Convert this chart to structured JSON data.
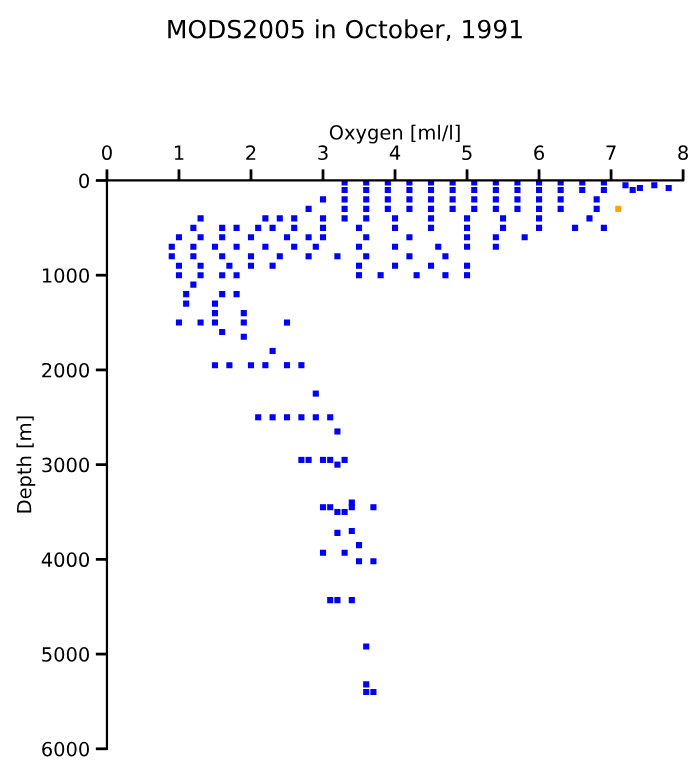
{
  "chart_data": {
    "type": "scatter",
    "title": "MODS2005 in October, 1991",
    "xlabel": "Oxygen [ml/l]",
    "ylabel": "Depth [m]",
    "xlim": [
      0,
      8
    ],
    "ylim": [
      6000,
      0
    ],
    "xticks": [
      0,
      1,
      2,
      3,
      4,
      5,
      6,
      7,
      8
    ],
    "yticks": [
      0,
      1000,
      2000,
      3000,
      4000,
      5000,
      6000
    ],
    "grid": false,
    "marker": "square",
    "series": [
      {
        "color": "#0000ff",
        "x": [
          3.3,
          3.6,
          3.9,
          4.2,
          4.5,
          4.8,
          5.1,
          5.4,
          5.7,
          6.0,
          6.3,
          6.6,
          6.9,
          3.3,
          3.6,
          3.9,
          4.2,
          4.5,
          4.8,
          5.1,
          5.4,
          5.7,
          6.0,
          6.3,
          6.6,
          6.9,
          7.2,
          7.4,
          7.6,
          7.8,
          7.3,
          3.0,
          3.3,
          3.6,
          3.9,
          4.2,
          4.5,
          4.8,
          5.1,
          5.4,
          5.7,
          6.0,
          6.3,
          6.8,
          2.8,
          3.3,
          3.6,
          3.9,
          4.2,
          4.5,
          4.8,
          5.1,
          5.4,
          5.7,
          6.0,
          6.3,
          6.8,
          1.3,
          2.2,
          2.4,
          2.6,
          3.0,
          3.3,
          3.6,
          4.0,
          4.5,
          5.0,
          5.5,
          6.0,
          6.7,
          1.2,
          1.6,
          1.8,
          2.1,
          2.3,
          2.6,
          3.0,
          3.5,
          4.0,
          4.5,
          5.0,
          5.5,
          6.0,
          6.5,
          6.9,
          1.0,
          1.3,
          1.6,
          2.0,
          2.5,
          2.8,
          3.0,
          3.6,
          4.2,
          5.0,
          5.4,
          5.8,
          0.9,
          1.2,
          1.5,
          1.8,
          2.2,
          2.6,
          2.9,
          3.5,
          4.0,
          4.6,
          5.0,
          5.4,
          0.9,
          1.2,
          1.6,
          2.0,
          2.4,
          2.8,
          3.2,
          3.6,
          4.2,
          4.7,
          1.0,
          1.3,
          1.7,
          2.0,
          2.3,
          3.5,
          4.0,
          4.5,
          5.0,
          1.0,
          1.3,
          1.6,
          1.8,
          3.5,
          3.8,
          4.3,
          4.7,
          5.0,
          1.2,
          1.1,
          1.6,
          1.8,
          1.1,
          1.5,
          1.5,
          1.9,
          1.0,
          1.3,
          1.5,
          1.9,
          2.5,
          1.6,
          1.9,
          2.3,
          1.5,
          1.7,
          2.0,
          2.2,
          2.5,
          2.7,
          2.9,
          2.1,
          2.3,
          2.5,
          2.7,
          2.9,
          3.1,
          3.2,
          2.7,
          2.8,
          3.0,
          3.1,
          3.3,
          3.2,
          3.4,
          3.0,
          3.1,
          3.4,
          3.7,
          3.2,
          3.3,
          3.4,
          3.2,
          3.5,
          3.0,
          3.3,
          3.5,
          3.7,
          3.1,
          3.2,
          3.4,
          3.6,
          3.6,
          3.6,
          3.7
        ],
        "values": [
          20,
          20,
          20,
          20,
          20,
          20,
          20,
          20,
          20,
          20,
          20,
          20,
          20,
          100,
          100,
          100,
          100,
          100,
          100,
          100,
          100,
          100,
          100,
          100,
          100,
          100,
          50,
          80,
          50,
          80,
          100,
          200,
          200,
          200,
          200,
          200,
          200,
          200,
          200,
          200,
          200,
          200,
          200,
          200,
          300,
          300,
          300,
          300,
          300,
          300,
          300,
          300,
          300,
          300,
          300,
          300,
          300,
          400,
          400,
          400,
          400,
          400,
          400,
          400,
          400,
          400,
          400,
          400,
          400,
          400,
          500,
          500,
          500,
          500,
          500,
          500,
          500,
          500,
          500,
          500,
          500,
          500,
          500,
          500,
          500,
          600,
          600,
          600,
          600,
          600,
          600,
          600,
          600,
          600,
          600,
          600,
          600,
          700,
          700,
          700,
          700,
          700,
          700,
          700,
          700,
          700,
          700,
          700,
          700,
          800,
          800,
          800,
          800,
          800,
          800,
          800,
          800,
          800,
          800,
          900,
          900,
          900,
          900,
          900,
          900,
          900,
          900,
          900,
          1000,
          1000,
          1000,
          1000,
          1000,
          1000,
          1000,
          1000,
          1000,
          1100,
          1200,
          1200,
          1200,
          1300,
          1300,
          1400,
          1400,
          1500,
          1500,
          1500,
          1500,
          1500,
          1600,
          1650,
          1800,
          1950,
          1950,
          1950,
          1950,
          1950,
          1950,
          2250,
          2500,
          2500,
          2500,
          2500,
          2500,
          2500,
          2650,
          2950,
          2950,
          2950,
          2950,
          2950,
          3000,
          3400,
          3450,
          3450,
          3450,
          3450,
          3500,
          3500,
          3700,
          3720,
          3850,
          3930,
          3930,
          4020,
          4020,
          4430,
          4430,
          4430,
          4920,
          5320,
          5400,
          5400
        ]
      },
      {
        "color": "#ffa500",
        "x": [
          7.1
        ],
        "values": [
          300
        ]
      }
    ]
  }
}
